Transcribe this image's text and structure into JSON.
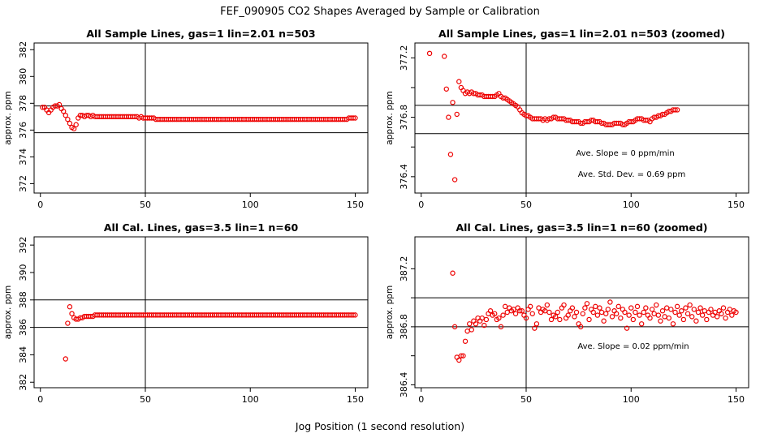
{
  "figure": {
    "title": "FEF_090905  CO2 Shapes Averaged by Sample or Calibration",
    "xlabel": "Jog Position (1 second resolution)"
  },
  "colors": {
    "points": "#ee0000",
    "axes": "#000000",
    "background": "#ffffff"
  },
  "chart_data": [
    {
      "type": "scatter",
      "title": "All Sample Lines, gas=1 lin=2.01 n=503",
      "xlabel": "",
      "ylabel": "approx. ppm",
      "xlim": [
        -3,
        156
      ],
      "ylim": [
        371.3,
        382.5
      ],
      "xticks": [
        0,
        50,
        100,
        150
      ],
      "yticks": [
        372,
        374,
        376,
        378,
        380,
        382
      ],
      "vline": 50,
      "hlines": [
        375.8,
        377.8
      ],
      "annotations": [],
      "x_start": 1,
      "y": [
        377.7,
        377.7,
        377.5,
        377.3,
        377.5,
        377.7,
        377.8,
        377.8,
        377.9,
        377.6,
        377.4,
        377.1,
        376.8,
        376.5,
        376.2,
        376.1,
        376.4,
        376.9,
        377.1,
        377.1,
        377.0,
        377.1,
        377.1,
        377.0,
        377.1,
        377.0,
        377.0,
        377.0,
        377.0,
        377.0,
        377.0,
        377.0,
        377.0,
        377.0,
        377.0,
        377.0,
        377.0,
        377.0,
        377.0,
        377.0,
        377.0,
        377.0,
        377.0,
        377.0,
        377.0,
        377.0,
        376.9,
        377.0,
        376.9,
        376.9,
        376.9,
        376.9,
        376.9,
        376.9,
        376.8,
        376.8,
        376.8,
        376.8,
        376.8,
        376.8,
        376.8,
        376.8,
        376.8,
        376.8,
        376.8,
        376.8,
        376.8,
        376.8,
        376.8,
        376.8,
        376.8,
        376.8,
        376.8,
        376.8,
        376.8,
        376.8,
        376.8,
        376.8,
        376.8,
        376.8,
        376.8,
        376.8,
        376.8,
        376.8,
        376.8,
        376.8,
        376.8,
        376.8,
        376.8,
        376.8,
        376.8,
        376.8,
        376.8,
        376.8,
        376.8,
        376.8,
        376.8,
        376.8,
        376.8,
        376.8,
        376.8,
        376.8,
        376.8,
        376.8,
        376.8,
        376.8,
        376.8,
        376.8,
        376.8,
        376.8,
        376.8,
        376.8,
        376.8,
        376.8,
        376.8,
        376.8,
        376.8,
        376.8,
        376.8,
        376.8,
        376.8,
        376.8,
        376.8,
        376.8,
        376.8,
        376.8,
        376.8,
        376.8,
        376.8,
        376.8,
        376.8,
        376.8,
        376.8,
        376.8,
        376.8,
        376.8,
        376.8,
        376.8,
        376.8,
        376.8,
        376.8,
        376.8,
        376.8,
        376.8,
        376.8,
        376.8,
        376.9,
        376.9,
        376.9,
        376.9
      ]
    },
    {
      "type": "scatter",
      "title": "All Sample Lines, gas=1 lin=2.01 n=503 (zoomed)",
      "xlabel": "",
      "ylabel": "approx. ppm",
      "xlim": [
        -3,
        156
      ],
      "ylim": [
        376.29,
        377.3
      ],
      "xticks": [
        0,
        50,
        100,
        150
      ],
      "yticks": [
        376.4,
        376.6,
        376.8,
        377.0,
        377.2
      ],
      "ytick_labels": [
        "376.4",
        "",
        "376.8",
        "",
        "377.2"
      ],
      "vline": 50,
      "hlines": [
        376.69,
        376.88
      ],
      "annotations": [
        "Ave. Slope =  0  ppm/min",
        "Ave. Std. Dev. =  0.69  ppm"
      ],
      "x_start": 4,
      "y": [
        377.23,
        null,
        null,
        null,
        null,
        null,
        null,
        377.21,
        376.99,
        376.8,
        376.55,
        376.9,
        376.38,
        376.82,
        377.04,
        377.0,
        376.98,
        376.96,
        376.97,
        376.96,
        376.97,
        376.96,
        376.96,
        376.95,
        376.95,
        376.95,
        376.94,
        376.94,
        376.94,
        376.94,
        376.94,
        376.94,
        376.95,
        376.96,
        376.94,
        376.93,
        376.93,
        376.92,
        376.91,
        376.9,
        376.89,
        376.88,
        376.87,
        376.85,
        376.83,
        376.82,
        376.81,
        376.81,
        376.8,
        376.79,
        376.79,
        376.79,
        376.79,
        376.79,
        376.78,
        376.79,
        376.78,
        376.79,
        376.79,
        376.8,
        376.8,
        376.79,
        376.79,
        376.79,
        376.79,
        376.78,
        376.78,
        376.78,
        376.77,
        376.77,
        376.77,
        376.77,
        376.76,
        376.76,
        376.77,
        376.77,
        376.77,
        376.78,
        376.78,
        376.77,
        376.77,
        376.77,
        376.76,
        376.76,
        376.75,
        376.75,
        376.75,
        376.75,
        376.76,
        376.76,
        376.76,
        376.76,
        376.75,
        376.75,
        376.76,
        376.77,
        376.77,
        376.77,
        376.78,
        376.79,
        376.79,
        376.79,
        376.78,
        376.78,
        376.78,
        376.77,
        376.79,
        376.8,
        376.8,
        376.81,
        376.81,
        376.82,
        376.82,
        376.83,
        376.84,
        376.84,
        376.85,
        376.85,
        376.85
      ]
    },
    {
      "type": "scatter",
      "title": "All Cal. Lines, gas=3.5 lin=1 n=60",
      "xlabel": "",
      "ylabel": "approx. ppm",
      "xlim": [
        -3,
        156
      ],
      "ylim": [
        381.6,
        392.6
      ],
      "xticks": [
        0,
        50,
        100,
        150
      ],
      "yticks": [
        382,
        384,
        386,
        388,
        390,
        392
      ],
      "vline": 50,
      "hlines": [
        386.0,
        388.0
      ],
      "annotations": [],
      "x_start": 12,
      "y": [
        383.7,
        386.3,
        387.5,
        387.0,
        386.7,
        386.6,
        386.6,
        386.7,
        386.7,
        386.8,
        386.8,
        386.8,
        386.8,
        386.8,
        386.9,
        386.9,
        386.9,
        386.9,
        386.9,
        386.9,
        386.9,
        386.9,
        386.9,
        386.9,
        386.9,
        386.9,
        386.9,
        386.9,
        386.9,
        386.9,
        386.9,
        386.9,
        386.9,
        386.9,
        386.9,
        386.9,
        386.9,
        386.9,
        386.9,
        386.9,
        386.9,
        386.9,
        386.9,
        386.9,
        386.9,
        386.9,
        386.9,
        386.9,
        386.9,
        386.9,
        386.9,
        386.9,
        386.9,
        386.9,
        386.9,
        386.9,
        386.9,
        386.9,
        386.9,
        386.9,
        386.9,
        386.9,
        386.9,
        386.9,
        386.9,
        386.9,
        386.9,
        386.9,
        386.9,
        386.9,
        386.9,
        386.9,
        386.9,
        386.9,
        386.9,
        386.9,
        386.9,
        386.9,
        386.9,
        386.9,
        386.9,
        386.9,
        386.9,
        386.9,
        386.9,
        386.9,
        386.9,
        386.9,
        386.9,
        386.9,
        386.9,
        386.9,
        386.9,
        386.9,
        386.9,
        386.9,
        386.9,
        386.9,
        386.9,
        386.9,
        386.9,
        386.9,
        386.9,
        386.9,
        386.9,
        386.9,
        386.9,
        386.9,
        386.9,
        386.9,
        386.9,
        386.9,
        386.9,
        386.9,
        386.9,
        386.9,
        386.9,
        386.9,
        386.9,
        386.9,
        386.9,
        386.9,
        386.9,
        386.9,
        386.9,
        386.9,
        386.9,
        386.9,
        386.9,
        386.9,
        386.9,
        386.9,
        386.9,
        386.9,
        386.9,
        386.9,
        386.9,
        386.9,
        386.9
      ]
    },
    {
      "type": "scatter",
      "title": "All Cal. Lines, gas=3.5 lin=1 n=60 (zoomed)",
      "xlabel": "",
      "ylabel": "approx. ppm",
      "xlim": [
        -3,
        156
      ],
      "ylim": [
        386.38,
        387.42
      ],
      "xticks": [
        0,
        50,
        100,
        150
      ],
      "yticks": [
        386.4,
        386.6,
        386.8,
        387.0,
        387.2
      ],
      "ytick_labels": [
        "386.4",
        "",
        "386.8",
        "",
        "387.2"
      ],
      "vline": 50,
      "hlines": [
        386.8,
        387.0
      ],
      "annotations": [
        "Ave. Slope =  0.02  ppm/min"
      ],
      "x_start": 15,
      "y": [
        387.17,
        386.8,
        386.59,
        386.57,
        386.6,
        386.6,
        386.7,
        386.77,
        386.82,
        386.78,
        386.84,
        386.82,
        386.86,
        386.84,
        386.86,
        386.81,
        386.85,
        386.89,
        386.91,
        386.88,
        386.89,
        386.85,
        386.86,
        386.8,
        386.88,
        386.94,
        386.9,
        386.93,
        386.91,
        386.92,
        386.89,
        386.93,
        386.91,
        386.91,
        386.88,
        386.86,
        386.92,
        386.94,
        386.89,
        386.79,
        386.82,
        386.93,
        386.9,
        386.92,
        386.91,
        386.95,
        386.9,
        386.85,
        386.88,
        386.87,
        386.9,
        386.85,
        386.93,
        386.95,
        386.86,
        386.88,
        386.91,
        386.93,
        386.87,
        386.9,
        386.82,
        386.8,
        386.89,
        386.93,
        386.96,
        386.85,
        386.92,
        386.9,
        386.94,
        386.88,
        386.93,
        386.9,
        386.84,
        386.89,
        386.92,
        386.97,
        386.87,
        386.91,
        386.89,
        386.94,
        386.86,
        386.92,
        386.9,
        386.79,
        386.88,
        386.93,
        386.85,
        386.9,
        386.94,
        386.88,
        386.82,
        386.9,
        386.93,
        386.88,
        386.86,
        386.92,
        386.89,
        386.95,
        386.88,
        386.84,
        386.91,
        386.87,
        386.93,
        386.86,
        386.92,
        386.82,
        386.9,
        386.94,
        386.88,
        386.91,
        386.85,
        386.93,
        386.89,
        386.95,
        386.87,
        386.92,
        386.84,
        386.9,
        386.93,
        386.88,
        386.91,
        386.85,
        386.9,
        386.92,
        386.88,
        386.9,
        386.87,
        386.91,
        386.89,
        386.93,
        386.86,
        386.9,
        386.92,
        386.88,
        386.91,
        386.9
      ]
    }
  ]
}
